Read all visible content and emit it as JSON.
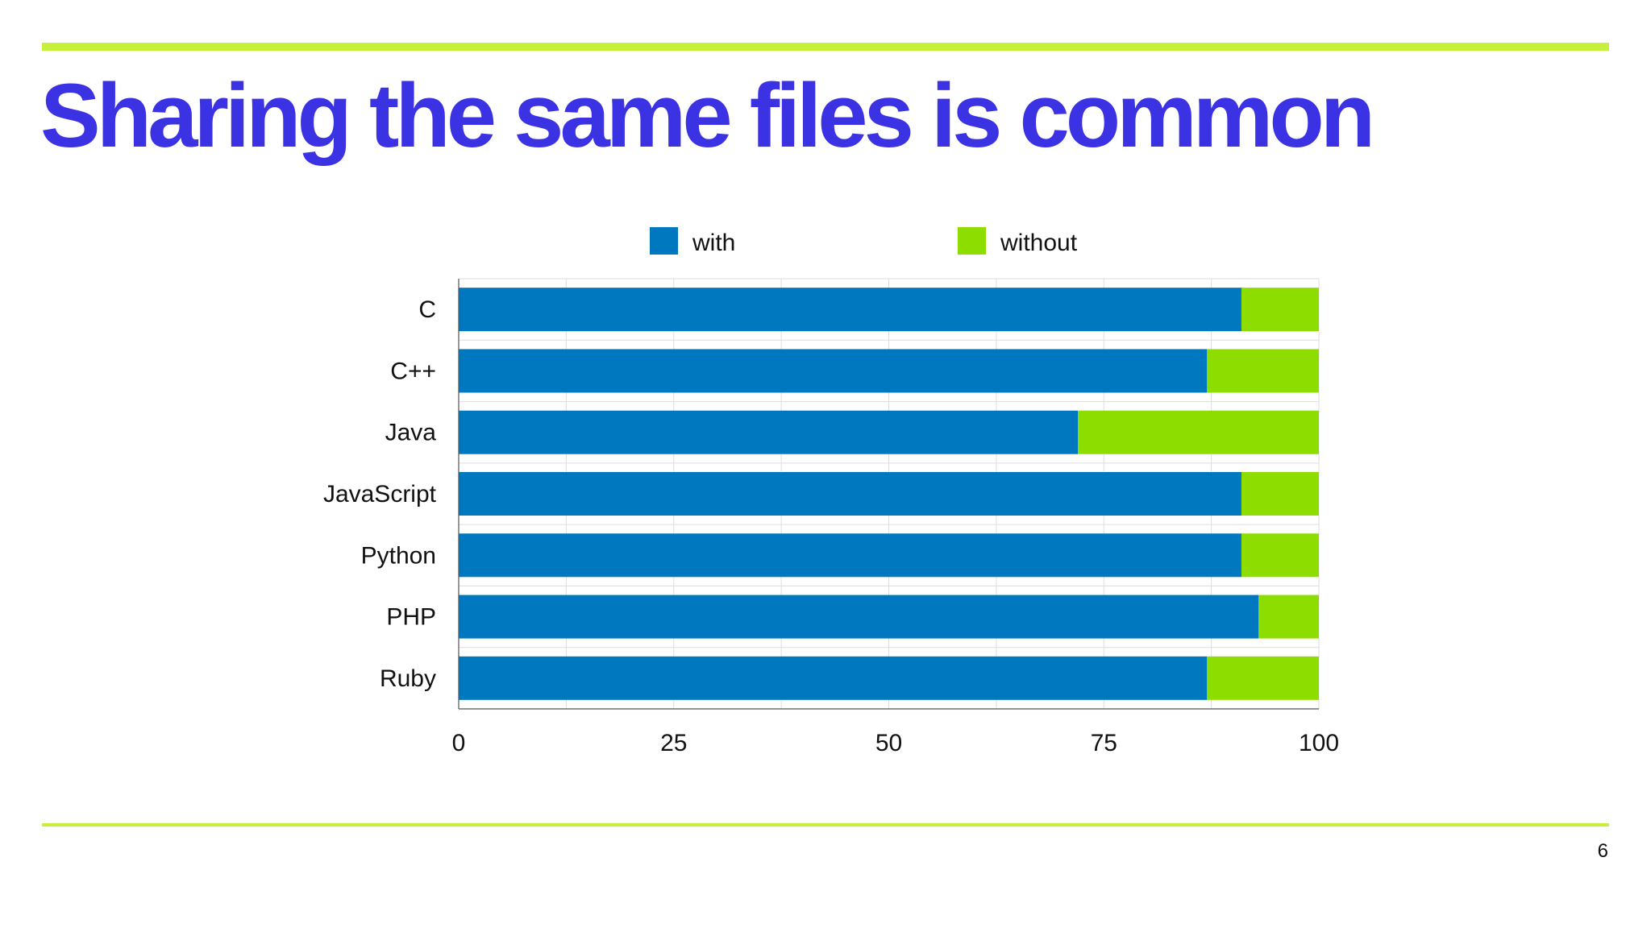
{
  "slide": {
    "title": "Sharing the same files is common",
    "page_number": "6"
  },
  "colors": {
    "accent_rule": "#c6f03a",
    "title": "#3b32e3",
    "with": "#0078bf",
    "without": "#8ddd00"
  },
  "chart_data": {
    "type": "bar",
    "orientation": "horizontal",
    "stacked": true,
    "categories": [
      "C",
      "C++",
      "Java",
      "JavaScript",
      "Python",
      "PHP",
      "Ruby"
    ],
    "series": [
      {
        "name": "with",
        "color": "#0078bf",
        "values": [
          91,
          87,
          72,
          91,
          91,
          93,
          87
        ]
      },
      {
        "name": "without",
        "color": "#8ddd00",
        "values": [
          9,
          13,
          28,
          9,
          9,
          7,
          13
        ]
      }
    ],
    "xlim": [
      0,
      100
    ],
    "xticks": [
      "0",
      "25",
      "50",
      "75",
      "100"
    ],
    "grid": true,
    "legend": "top",
    "title": "",
    "xlabel": "",
    "ylabel": ""
  }
}
